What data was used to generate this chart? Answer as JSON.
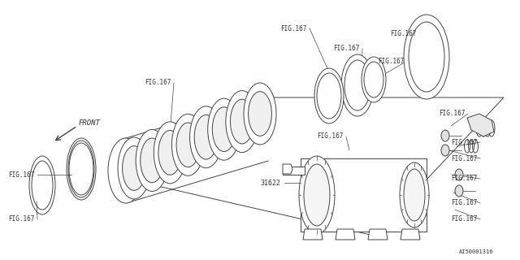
{
  "bg_color": "#ffffff",
  "line_color": "#444444",
  "label_color": "#333333",
  "doc_number": "AI50001316",
  "part_number": "31622",
  "front_label": "FRONT",
  "fig_label": "FIG.167"
}
